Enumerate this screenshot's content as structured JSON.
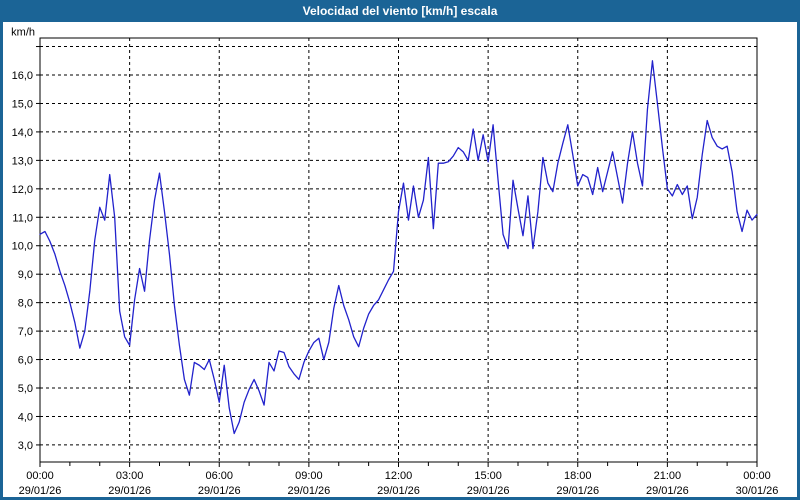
{
  "window": {
    "title": "Velocidad del viento [km/h] escala"
  },
  "colors": {
    "titlebar": "#1b6496",
    "frame": "#1b6496",
    "line": "#2222cc",
    "grid": "#000000",
    "background": "#ffffff",
    "text": "#000000"
  },
  "chart_data": {
    "type": "line",
    "title": "Velocidad del viento [km/h] escala",
    "unit_label": "km/h",
    "grid": "dashed",
    "legend_position": "none",
    "xlim_hours": [
      0,
      24
    ],
    "ylim": [
      2.4,
      17.3
    ],
    "x_step_minutes": 10,
    "minor_x_tick_every_hours": 1,
    "y_ticks": [
      {
        "value": 3,
        "label": "3,0"
      },
      {
        "value": 4,
        "label": "4,0"
      },
      {
        "value": 5,
        "label": "5,0"
      },
      {
        "value": 6,
        "label": "6,0"
      },
      {
        "value": 7,
        "label": "7,0"
      },
      {
        "value": 8,
        "label": "8,0"
      },
      {
        "value": 9,
        "label": "9,0"
      },
      {
        "value": 10,
        "label": "10,0"
      },
      {
        "value": 11,
        "label": "11,0"
      },
      {
        "value": 12,
        "label": "12,0"
      },
      {
        "value": 13,
        "label": "13,0"
      },
      {
        "value": 14,
        "label": "14,0"
      },
      {
        "value": 15,
        "label": "15,0"
      },
      {
        "value": 16,
        "label": "16,0"
      }
    ],
    "x_ticks": [
      {
        "hour": 0,
        "time": "00:00",
        "date": "29/01/26"
      },
      {
        "hour": 3,
        "time": "03:00",
        "date": "29/01/26"
      },
      {
        "hour": 6,
        "time": "06:00",
        "date": "29/01/26"
      },
      {
        "hour": 9,
        "time": "09:00",
        "date": "29/01/26"
      },
      {
        "hour": 12,
        "time": "12:00",
        "date": "29/01/26"
      },
      {
        "hour": 15,
        "time": "15:00",
        "date": "29/01/26"
      },
      {
        "hour": 18,
        "time": "18:00",
        "date": "29/01/26"
      },
      {
        "hour": 21,
        "time": "21:00",
        "date": "29/01/26"
      },
      {
        "hour": 24,
        "time": "00:00",
        "date": "30/01/26"
      }
    ],
    "series": [
      {
        "name": "Velocidad del viento [km/h]",
        "values": [
          10.4,
          10.5,
          10.15,
          9.7,
          9.1,
          8.6,
          8.0,
          7.3,
          6.4,
          7.0,
          8.4,
          10.2,
          11.35,
          10.9,
          12.5,
          11.0,
          7.7,
          6.8,
          6.5,
          8.1,
          9.2,
          8.4,
          10.2,
          11.6,
          12.55,
          11.2,
          9.7,
          7.9,
          6.5,
          5.3,
          4.75,
          5.9,
          5.8,
          5.65,
          6.0,
          5.3,
          4.5,
          5.8,
          4.3,
          3.4,
          3.8,
          4.5,
          4.95,
          5.3,
          4.9,
          4.4,
          5.9,
          5.6,
          6.3,
          6.25,
          5.75,
          5.5,
          5.3,
          5.9,
          6.3,
          6.6,
          6.75,
          6.0,
          6.6,
          7.8,
          8.6,
          7.9,
          7.4,
          6.8,
          6.45,
          7.1,
          7.6,
          7.9,
          8.1,
          8.45,
          8.8,
          9.1,
          11.2,
          12.2,
          10.9,
          12.1,
          11.0,
          11.6,
          13.1,
          10.6,
          12.9,
          12.9,
          12.95,
          13.15,
          13.45,
          13.3,
          13.0,
          14.1,
          13.0,
          13.9,
          12.95,
          14.25,
          12.3,
          10.4,
          9.9,
          12.3,
          11.3,
          10.35,
          11.75,
          9.9,
          11.2,
          13.1,
          12.2,
          11.9,
          12.9,
          13.6,
          14.25,
          13.2,
          12.1,
          12.5,
          12.4,
          11.8,
          12.75,
          11.9,
          12.6,
          13.3,
          12.4,
          11.5,
          12.9,
          14.0,
          12.9,
          12.1,
          14.8,
          16.5,
          15.0,
          13.45,
          12.0,
          11.75,
          12.15,
          11.8,
          12.1,
          10.95,
          11.7,
          13.2,
          14.4,
          13.8,
          13.5,
          13.4,
          13.5,
          12.6,
          11.2,
          10.5,
          11.25,
          10.9,
          11.1
        ]
      }
    ]
  }
}
